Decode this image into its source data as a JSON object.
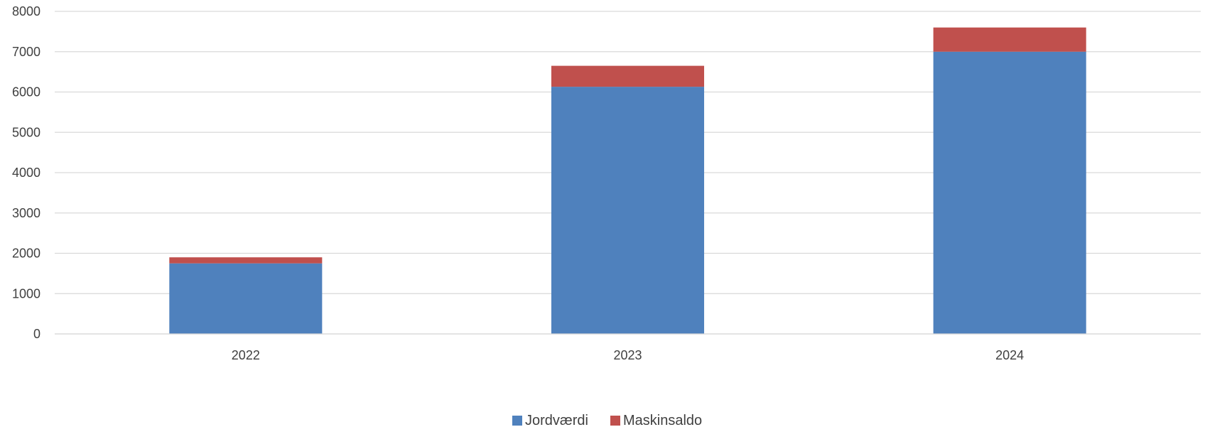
{
  "chart_data": {
    "type": "bar",
    "stacked": true,
    "categories": [
      "2022",
      "2023",
      "2024"
    ],
    "series": [
      {
        "name": "Jordværdi",
        "color": "#4F81BD",
        "values": [
          1750,
          6130,
          7000
        ]
      },
      {
        "name": "Maskinsaldo",
        "color": "#C0504D",
        "values": [
          150,
          520,
          600
        ]
      }
    ],
    "ylim": [
      0,
      8000
    ],
    "yticks": [
      0,
      1000,
      2000,
      3000,
      4000,
      5000,
      6000,
      7000,
      8000
    ],
    "grid": true,
    "legend_position": "bottom",
    "title": "",
    "xlabel": "",
    "ylabel": ""
  }
}
